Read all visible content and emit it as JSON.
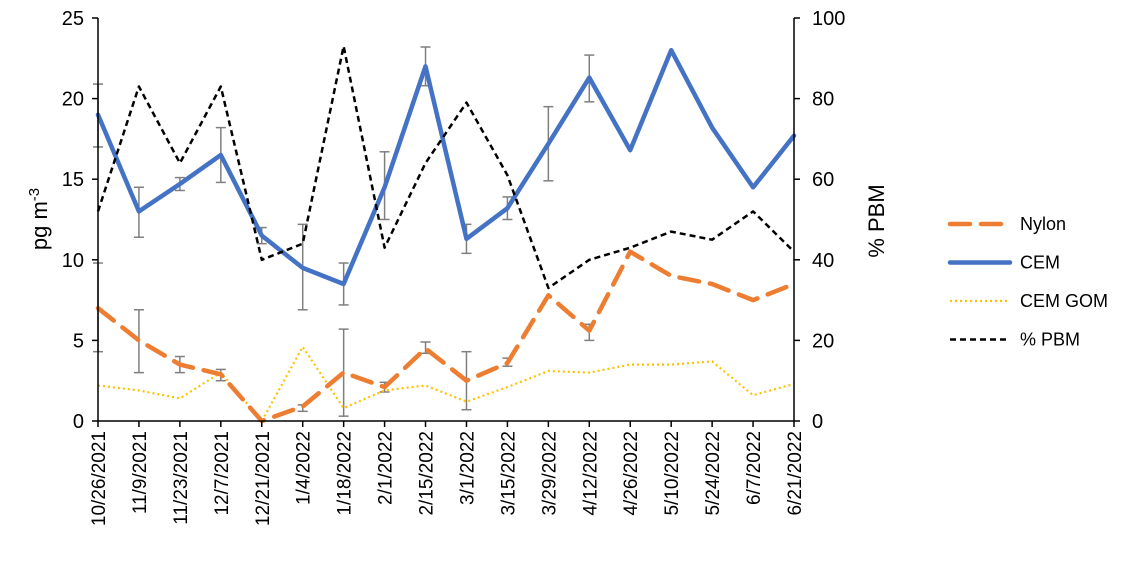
{
  "chart_data": {
    "type": "line",
    "categories": [
      "10/26/2021",
      "11/9/2021",
      "11/23/2021",
      "12/7/2021",
      "12/21/2021",
      "1/4/2022",
      "1/18/2022",
      "2/1/2022",
      "2/15/2022",
      "3/1/2022",
      "3/15/2022",
      "3/29/2022",
      "4/12/2022",
      "4/26/2022",
      "5/10/2022",
      "5/24/2022",
      "6/7/2022",
      "6/21/2022"
    ],
    "ylabel": "pg m",
    "ylabel_sup": "-3",
    "y2label": "% PBM",
    "ylim": [
      0,
      25
    ],
    "y2lim": [
      0,
      100
    ],
    "yticks": [
      "0",
      "5",
      "10",
      "15",
      "20",
      "25"
    ],
    "y2ticks": [
      "0",
      "20",
      "40",
      "60",
      "80",
      "100"
    ],
    "legend_position": "right",
    "grid": false,
    "series": [
      {
        "name": "Nylon",
        "axis": "left",
        "color": "#ED7D31",
        "style": "long-dash",
        "values": [
          7.0,
          5.0,
          3.5,
          2.9,
          0.0,
          0.9,
          3.0,
          2.1,
          4.5,
          2.5,
          3.6,
          7.8,
          5.6,
          10.5,
          9.0,
          8.5,
          7.5,
          8.5
        ]
      },
      {
        "name": "CEM",
        "axis": "left",
        "color": "#4472C4",
        "style": "solid",
        "values": [
          19.0,
          13.0,
          14.7,
          16.5,
          11.5,
          9.5,
          8.5,
          14.5,
          22.0,
          11.3,
          13.2,
          17.2,
          21.3,
          16.8,
          23.0,
          18.2,
          14.5,
          17.7
        ]
      },
      {
        "name": "CEM GOM",
        "axis": "left",
        "color": "#FFC000",
        "style": "dotted",
        "values": [
          2.2,
          1.9,
          1.4,
          3.0,
          0.0,
          4.6,
          0.8,
          1.9,
          2.2,
          1.2,
          2.1,
          3.1,
          3.0,
          3.5,
          3.5,
          3.7,
          1.6,
          2.3
        ]
      },
      {
        "name": "% PBM",
        "axis": "right",
        "color": "#000000",
        "style": "short-dash",
        "values": [
          52,
          83,
          64,
          83,
          40,
          44,
          93,
          43,
          64,
          79,
          61,
          33,
          40,
          43,
          47,
          45,
          52,
          42
        ]
      }
    ],
    "error_bars": [
      {
        "series": "Nylon",
        "index": 0,
        "low": 4.3,
        "high": 9.8
      },
      {
        "series": "Nylon",
        "index": 1,
        "low": 3.0,
        "high": 6.9
      },
      {
        "series": "Nylon",
        "index": 2,
        "low": 3.0,
        "high": 4.0
      },
      {
        "series": "Nylon",
        "index": 3,
        "low": 2.5,
        "high": 3.2
      },
      {
        "series": "Nylon",
        "index": 5,
        "low": 0.6,
        "high": 1.0
      },
      {
        "series": "Nylon",
        "index": 6,
        "low": 0.3,
        "high": 5.7
      },
      {
        "series": "Nylon",
        "index": 7,
        "low": 1.8,
        "high": 2.4
      },
      {
        "series": "Nylon",
        "index": 8,
        "low": 4.2,
        "high": 4.9
      },
      {
        "series": "Nylon",
        "index": 9,
        "low": 0.7,
        "high": 4.3
      },
      {
        "series": "Nylon",
        "index": 10,
        "low": 3.4,
        "high": 3.9
      },
      {
        "series": "Nylon",
        "index": 12,
        "low": 5.0,
        "high": 6.0
      },
      {
        "series": "CEM",
        "index": 0,
        "low": 17.0,
        "high": 20.9
      },
      {
        "series": "CEM",
        "index": 1,
        "low": 11.4,
        "high": 14.5
      },
      {
        "series": "CEM",
        "index": 2,
        "low": 14.3,
        "high": 15.1
      },
      {
        "series": "CEM",
        "index": 3,
        "low": 14.8,
        "high": 18.2
      },
      {
        "series": "CEM",
        "index": 4,
        "low": 11.0,
        "high": 12.0
      },
      {
        "series": "CEM",
        "index": 5,
        "low": 6.9,
        "high": 12.2
      },
      {
        "series": "CEM",
        "index": 6,
        "low": 7.2,
        "high": 9.8
      },
      {
        "series": "CEM",
        "index": 7,
        "low": 12.5,
        "high": 16.7
      },
      {
        "series": "CEM",
        "index": 8,
        "low": 20.8,
        "high": 23.2
      },
      {
        "series": "CEM",
        "index": 9,
        "low": 10.4,
        "high": 12.2
      },
      {
        "series": "CEM",
        "index": 10,
        "low": 12.5,
        "high": 13.9
      },
      {
        "series": "CEM",
        "index": 11,
        "low": 14.9,
        "high": 19.5
      },
      {
        "series": "CEM",
        "index": 12,
        "low": 19.8,
        "high": 22.7
      }
    ]
  }
}
